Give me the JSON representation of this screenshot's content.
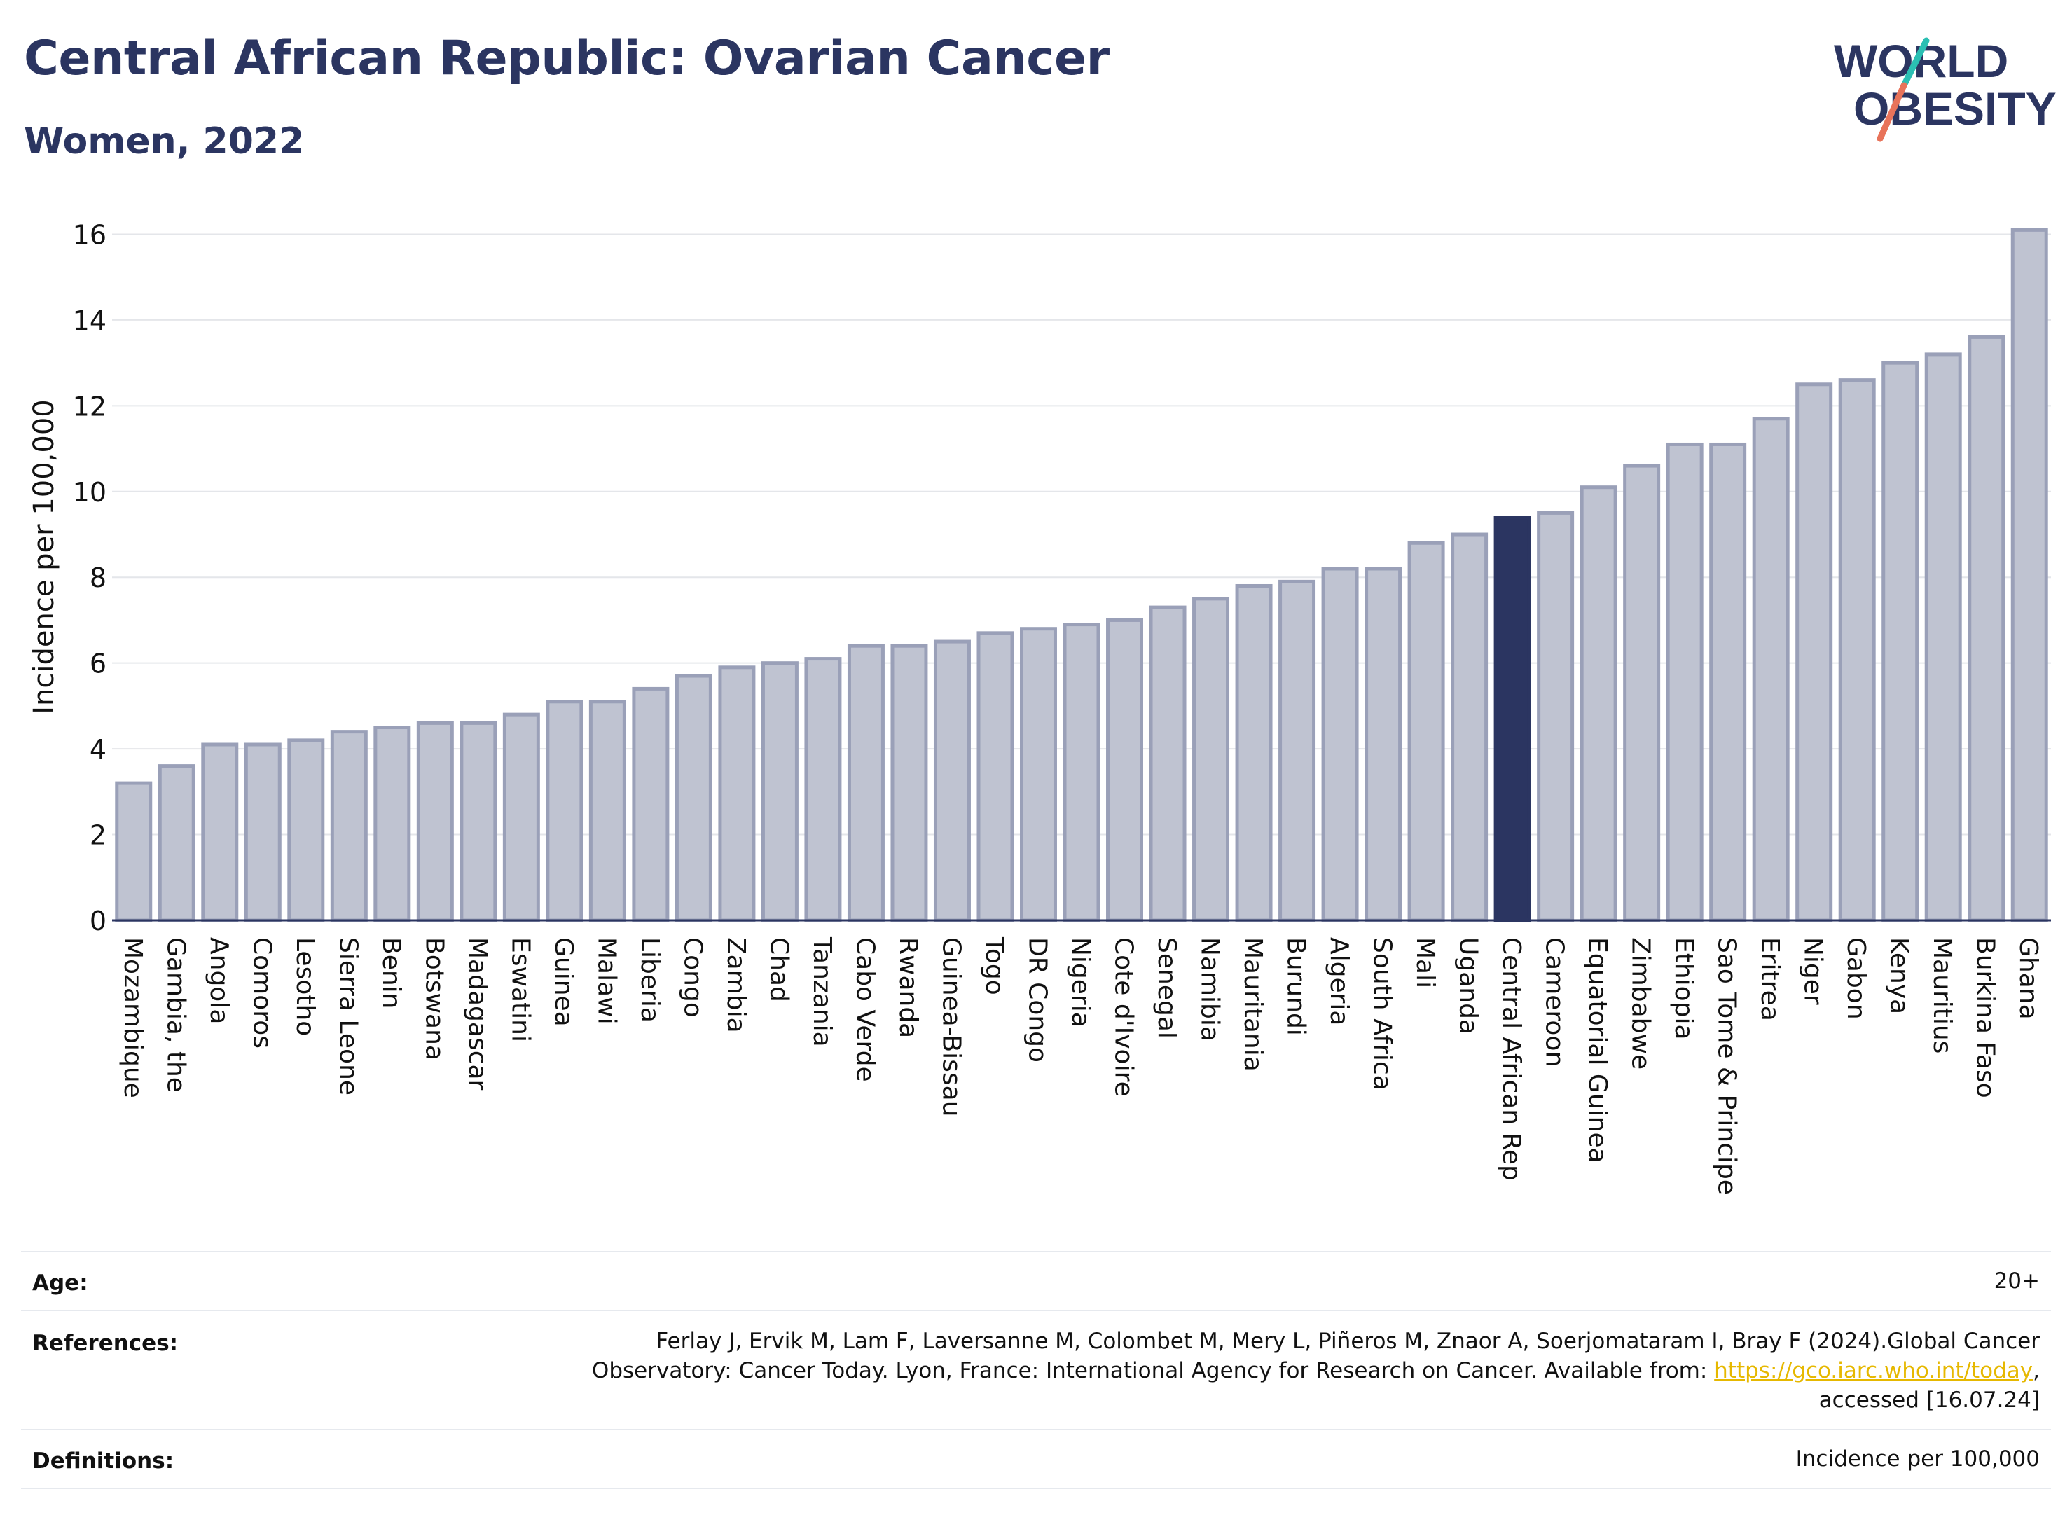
{
  "header": {
    "title": "Central African Republic: Ovarian Cancer",
    "subtitle": "Women, 2022"
  },
  "logo": {
    "line1": "WORLD",
    "line2": "OBESITY",
    "accent_teal": "#2bbfb3",
    "accent_coral": "#e8735a"
  },
  "colors": {
    "bar_fill": "#bfc3d1",
    "bar_stroke": "#9aa0b8",
    "highlight": "#2b3561",
    "text_dark": "#2b3561"
  },
  "chart_data": {
    "type": "bar",
    "title": "Central African Republic: Ovarian Cancer",
    "subtitle": "Women, 2022",
    "xlabel": "",
    "ylabel": "Incidence per 100,000",
    "ylim": [
      0,
      16.4
    ],
    "yticks": [
      0,
      2,
      4,
      6,
      8,
      10,
      12,
      14,
      16
    ],
    "grid": true,
    "highlight_category": "Central African Rep",
    "categories": [
      "Mozambique",
      "Gambia, the",
      "Angola",
      "Comoros",
      "Lesotho",
      "Sierra Leone",
      "Benin",
      "Botswana",
      "Madagascar",
      "Eswatini",
      "Guinea",
      "Malawi",
      "Liberia",
      "Congo",
      "Zambia",
      "Chad",
      "Tanzania",
      "Cabo Verde",
      "Rwanda",
      "Guinea-Bissau",
      "Togo",
      "DR Congo",
      "Nigeria",
      "Cote d'Ivoire",
      "Senegal",
      "Namibia",
      "Mauritania",
      "Burundi",
      "Algeria",
      "South Africa",
      "Mali",
      "Uganda",
      "Central African Rep",
      "Cameroon",
      "Equatorial Guinea",
      "Zimbabwe",
      "Ethiopia",
      "Sao Tome & Principe",
      "Eritrea",
      "Niger",
      "Gabon",
      "Kenya",
      "Mauritius",
      "Burkina Faso",
      "Ghana"
    ],
    "values": [
      3.2,
      3.6,
      4.1,
      4.1,
      4.2,
      4.4,
      4.5,
      4.6,
      4.6,
      4.8,
      5.1,
      5.1,
      5.4,
      5.7,
      5.9,
      6.0,
      6.1,
      6.4,
      6.4,
      6.5,
      6.7,
      6.8,
      6.9,
      7.0,
      7.3,
      7.5,
      7.8,
      7.9,
      8.2,
      8.2,
      8.8,
      9.0,
      9.4,
      9.5,
      10.1,
      10.6,
      11.1,
      11.1,
      11.7,
      12.5,
      12.6,
      13.0,
      13.2,
      13.6,
      16.1
    ]
  },
  "info": {
    "age_label": "Age:",
    "age_value": "20+",
    "references_label": "References:",
    "references_line1": "Ferlay J, Ervik M, Lam F, Laversanne M, Colombet M, Mery L, Piñeros M, Znaor A, Soerjomataram I, Bray F (2024).Global Cancer",
    "references_line2_pre": "Observatory: Cancer Today. Lyon, France: International Agency for Research on Cancer. Available from: ",
    "references_link": "https://gco.iarc.who.int/today",
    "references_line2_post": ",",
    "references_line3": "accessed [16.07.24]",
    "definitions_label": "Definitions:",
    "definitions_value": "Incidence per 100,000"
  }
}
